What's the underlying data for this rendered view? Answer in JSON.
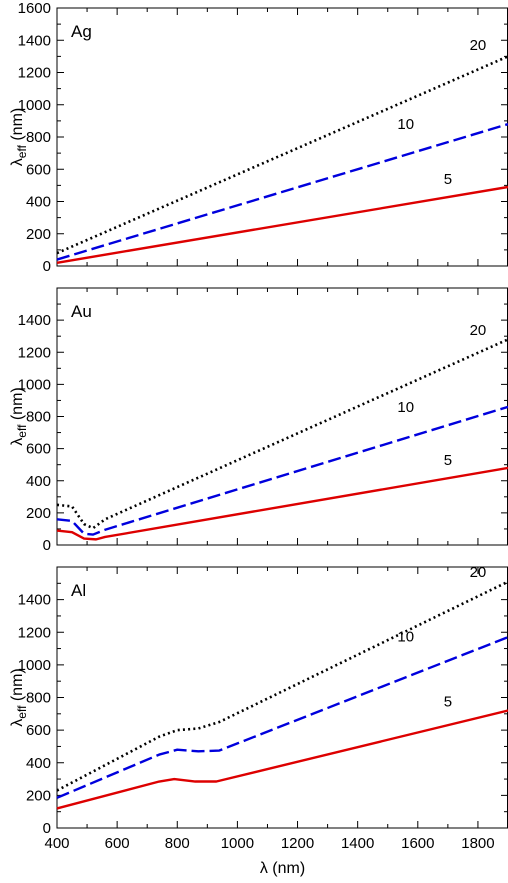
{
  "chart_data": [
    {
      "type": "line",
      "panel_label": "Ag",
      "xlim": [
        400,
        1900
      ],
      "ylim": [
        0,
        1600
      ],
      "x_ticks": [
        400,
        600,
        800,
        1000,
        1200,
        1400,
        1600,
        1800
      ],
      "y_ticks": [
        0,
        200,
        400,
        600,
        800,
        1000,
        1200,
        1400,
        1600
      ],
      "x_tick_labels_shown": false,
      "ylabel": "λeff (nm)",
      "series": [
        {
          "name": "20",
          "color": "#000000",
          "style": "dotted",
          "x": [
            400,
            1900
          ],
          "y": [
            80,
            1300
          ],
          "label_at": [
            1800,
            1370
          ]
        },
        {
          "name": "10",
          "color": "#0000dd",
          "style": "dashed",
          "x": [
            400,
            1900
          ],
          "y": [
            40,
            880
          ],
          "label_at": [
            1560,
            880
          ]
        },
        {
          "name": "5",
          "color": "#dd0000",
          "style": "solid",
          "x": [
            400,
            1900
          ],
          "y": [
            20,
            490
          ],
          "label_at": [
            1700,
            540
          ]
        }
      ]
    },
    {
      "type": "line",
      "panel_label": "Au",
      "xlim": [
        400,
        1900
      ],
      "ylim": [
        0,
        1600
      ],
      "x_ticks": [
        400,
        600,
        800,
        1000,
        1200,
        1400,
        1600,
        1800
      ],
      "y_ticks": [
        0,
        200,
        400,
        600,
        800,
        1000,
        1200,
        1400
      ],
      "x_tick_labels_shown": false,
      "ylabel": "λeff (nm)",
      "series": [
        {
          "name": "20",
          "color": "#000000",
          "style": "dotted",
          "x": [
            400,
            450,
            490,
            520,
            560,
            1900
          ],
          "y": [
            250,
            240,
            130,
            105,
            160,
            1280
          ],
          "label_at": [
            1800,
            1340
          ]
        },
        {
          "name": "10",
          "color": "#0000dd",
          "style": "dashed",
          "x": [
            400,
            450,
            490,
            520,
            560,
            1900
          ],
          "y": [
            160,
            150,
            70,
            65,
            95,
            860
          ],
          "label_at": [
            1560,
            860
          ]
        },
        {
          "name": "5",
          "color": "#dd0000",
          "style": "solid",
          "x": [
            400,
            450,
            490,
            530,
            560,
            1900
          ],
          "y": [
            90,
            80,
            40,
            35,
            50,
            480
          ],
          "label_at": [
            1700,
            530
          ]
        }
      ]
    },
    {
      "type": "line",
      "panel_label": "Al",
      "xlim": [
        400,
        1900
      ],
      "ylim": [
        0,
        1600
      ],
      "x_ticks": [
        400,
        600,
        800,
        1000,
        1200,
        1400,
        1600,
        1800
      ],
      "y_ticks": [
        0,
        200,
        400,
        600,
        800,
        1000,
        1200,
        1400
      ],
      "x_tick_labels_shown": true,
      "xlabel": "λ (nm)",
      "ylabel": "λeff (nm)",
      "series": [
        {
          "name": "20",
          "color": "#000000",
          "style": "dotted",
          "x": [
            400,
            740,
            800,
            870,
            940,
            1900
          ],
          "y": [
            230,
            560,
            600,
            610,
            650,
            1510
          ],
          "label_at": [
            1800,
            1570
          ]
        },
        {
          "name": "10",
          "color": "#0000dd",
          "style": "dashed",
          "x": [
            400,
            740,
            800,
            870,
            940,
            1900
          ],
          "y": [
            185,
            450,
            480,
            470,
            475,
            1170
          ],
          "label_at": [
            1560,
            1175
          ]
        },
        {
          "name": "5",
          "color": "#dd0000",
          "style": "solid",
          "x": [
            400,
            740,
            790,
            860,
            930,
            1900
          ],
          "y": [
            120,
            285,
            300,
            285,
            285,
            720
          ],
          "label_at": [
            1700,
            775
          ]
        }
      ]
    }
  ]
}
